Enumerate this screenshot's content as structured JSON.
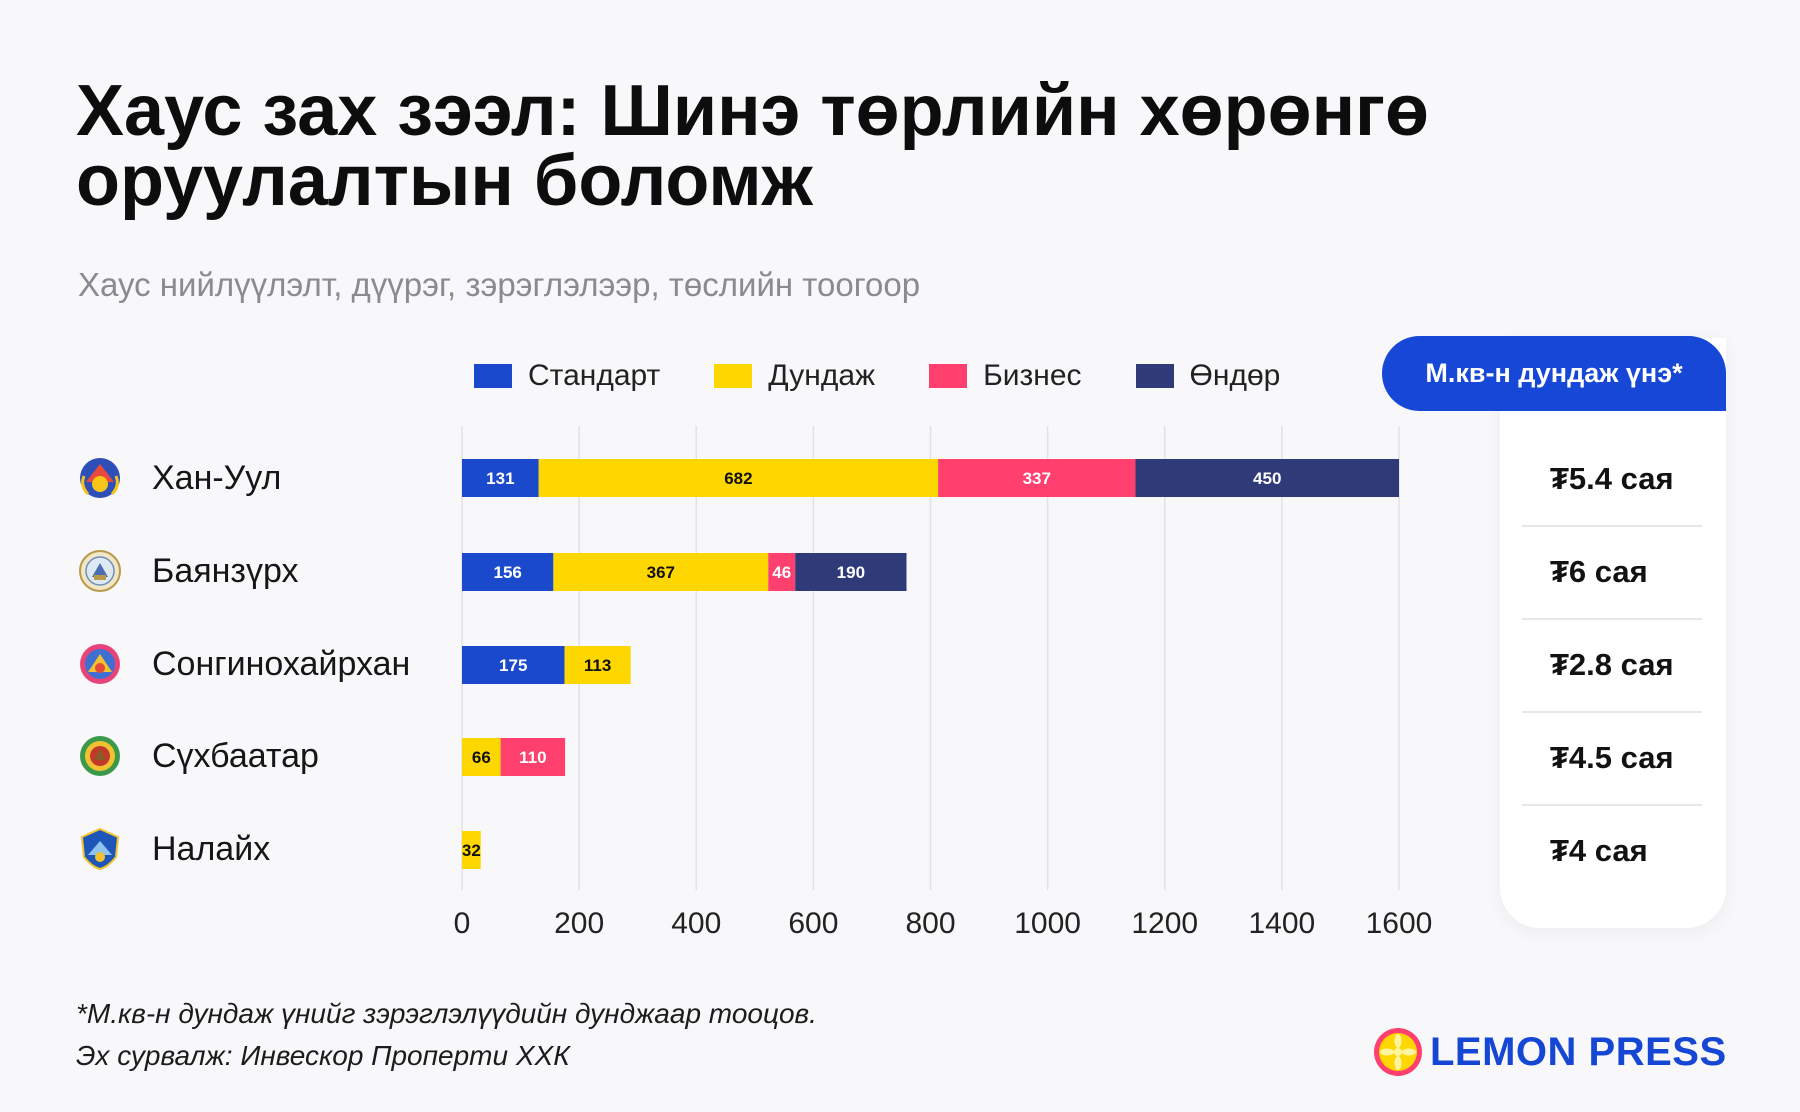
{
  "title": "Хаус зах зээл: Шинэ төрлийн хөрөнгө оруулалтын боломж",
  "subtitle": "Хаус нийлүүлэлт, дүүрэг, зэрэглэлээр, төслийн тоогоор",
  "colors": {
    "standard": "#1a49cc",
    "medium": "#ffd700",
    "business": "#ff3f6e",
    "high": "#2f3a78",
    "accent": "#1747d6"
  },
  "chart_data": {
    "type": "bar",
    "orientation": "horizontal",
    "stacked": true,
    "title": "",
    "xlabel": "",
    "ylabel": "",
    "xlim": [
      0,
      1650
    ],
    "x_ticks": [
      0,
      200,
      400,
      600,
      800,
      1000,
      1200,
      1400,
      1600
    ],
    "grid": true,
    "legend_position": "top",
    "categories": [
      "Хан-Уул",
      "Баянзүрх",
      "Сонгинохайрхан",
      "Сүхбаатар",
      "Налайх"
    ],
    "series": [
      {
        "name": "Стандарт",
        "color": "#1a49cc",
        "values": [
          131,
          156,
          175,
          null,
          null
        ]
      },
      {
        "name": "Дундаж",
        "color": "#ffd700",
        "values": [
          682,
          367,
          113,
          66,
          32
        ]
      },
      {
        "name": "Бизнес",
        "color": "#ff3f6e",
        "values": [
          337,
          46,
          null,
          110,
          null
        ]
      },
      {
        "name": "Өндөр",
        "color": "#2f3a78",
        "values": [
          450,
          190,
          null,
          null,
          null
        ]
      }
    ]
  },
  "price_panel": {
    "header": "М.кв-н дундаж үнэ*",
    "prices": [
      "₮5.4 сая",
      "₮6 сая",
      "₮2.8 сая",
      "₮4.5 сая",
      "₮4 сая"
    ]
  },
  "districts": [
    {
      "name": "Хан-Уул",
      "icon": "khan-uul-emblem-icon"
    },
    {
      "name": "Баянзүрх",
      "icon": "bayanzurkh-emblem-icon"
    },
    {
      "name": "Сонгинохайрхан",
      "icon": "songinokhairkhan-emblem-icon"
    },
    {
      "name": "Сүхбаатар",
      "icon": "sukhbaatar-emblem-icon"
    },
    {
      "name": "Налайх",
      "icon": "nalaikh-emblem-icon"
    }
  ],
  "footnotes": {
    "note": "*М.кв-н дундаж үнийг зэрэглэлүүдийн дунджаар тооцов.",
    "source": "Эх сурвалж: Инвескор Проперти ХХК"
  },
  "logo": {
    "text": "LEMON PRESS",
    "icon": "lemon-icon"
  }
}
